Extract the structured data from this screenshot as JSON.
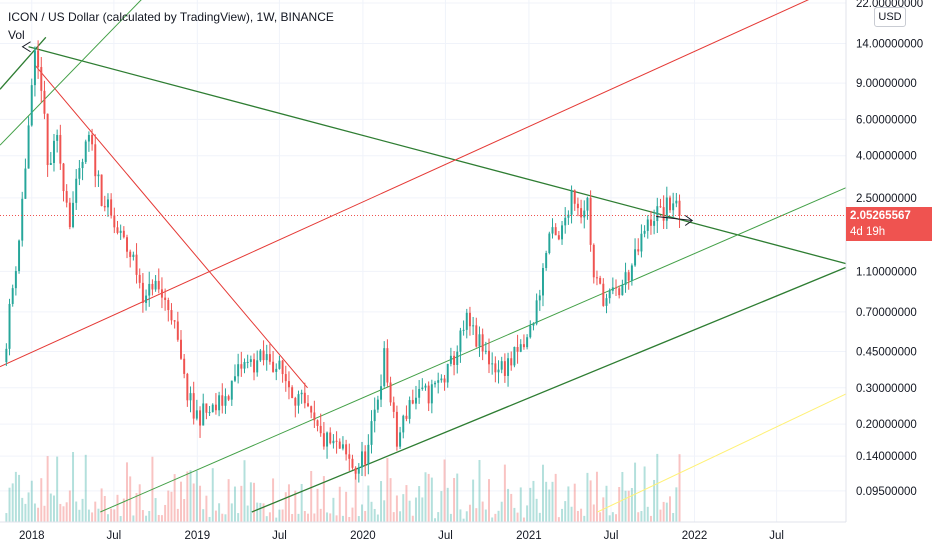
{
  "header": {
    "title": "ICON / US Dollar (calculated by TradingView), 1W, BINANCE",
    "indicator": "Vol"
  },
  "price_axis": {
    "unit": "USD",
    "last_price": "2.05265567",
    "countdown": "4d 19h"
  },
  "colors": {
    "up": "#26a69a",
    "down": "#ef5350",
    "channel_green": "#2e7d32",
    "channel_light_green": "#43a047",
    "channel_red": "#e53935",
    "yellow": "#fff176"
  },
  "chart_data": {
    "type": "candlestick",
    "y_scale": "log",
    "ylim": [
      0.075,
      22
    ],
    "y_ticks": [
      "22.00000000",
      "14.00000000",
      "9.00000000",
      "6.00000000",
      "4.00000000",
      "2.50000000",
      "1.10000000",
      "0.70000000",
      "0.45000000",
      "0.30000000",
      "0.20000000",
      "0.14000000",
      "0.09500000"
    ],
    "y_tick_values": [
      22,
      14,
      9,
      6,
      4,
      2.5,
      1.1,
      0.7,
      0.45,
      0.3,
      0.2,
      0.14,
      0.095
    ],
    "x_ticks": [
      "2018",
      "Jul",
      "2019",
      "Jul",
      "2020",
      "Jul",
      "2021",
      "Jul",
      "2022",
      "Jul"
    ],
    "x_tick_dates": [
      "2018-01-01",
      "2018-07-01",
      "2019-01-01",
      "2019-07-01",
      "2020-01-01",
      "2020-07-01",
      "2021-01-01",
      "2021-07-01",
      "2022-01-01",
      "2022-07-01"
    ],
    "x_range": [
      "2017-10-23",
      "2022-12-01"
    ],
    "last_price": 2.05265567,
    "price_anchors": [
      [
        "2017-10-30",
        0.4
      ],
      [
        "2017-12-04",
        1.6
      ],
      [
        "2017-12-25",
        5.5
      ],
      [
        "2018-01-08",
        11.5
      ],
      [
        "2018-01-22",
        9.0
      ],
      [
        "2018-02-05",
        3.5
      ],
      [
        "2018-02-26",
        4.6
      ],
      [
        "2018-03-26",
        2.0
      ],
      [
        "2018-04-23",
        3.7
      ],
      [
        "2018-05-07",
        4.8
      ],
      [
        "2018-06-04",
        2.6
      ],
      [
        "2018-07-02",
        1.8
      ],
      [
        "2018-08-13",
        1.25
      ],
      [
        "2018-09-10",
        0.78
      ],
      [
        "2018-09-24",
        0.98
      ],
      [
        "2018-11-05",
        0.7
      ],
      [
        "2018-12-03",
        0.32
      ],
      [
        "2018-12-24",
        0.22
      ],
      [
        "2019-02-04",
        0.23
      ],
      [
        "2019-03-04",
        0.27
      ],
      [
        "2019-04-08",
        0.38
      ],
      [
        "2019-05-13",
        0.4
      ],
      [
        "2019-06-10",
        0.42
      ],
      [
        "2019-07-15",
        0.33
      ],
      [
        "2019-08-19",
        0.25
      ],
      [
        "2019-09-30",
        0.17
      ],
      [
        "2019-11-11",
        0.15
      ],
      [
        "2019-12-16",
        0.12
      ],
      [
        "2020-01-13",
        0.15
      ],
      [
        "2020-02-17",
        0.42
      ],
      [
        "2020-03-16",
        0.16
      ],
      [
        "2020-04-13",
        0.26
      ],
      [
        "2020-05-25",
        0.28
      ],
      [
        "2020-07-06",
        0.35
      ],
      [
        "2020-08-17",
        0.62
      ],
      [
        "2020-09-21",
        0.45
      ],
      [
        "2020-10-26",
        0.37
      ],
      [
        "2020-11-23",
        0.4
      ],
      [
        "2020-12-28",
        0.5
      ],
      [
        "2021-01-18",
        0.75
      ],
      [
        "2021-02-15",
        1.65
      ],
      [
        "2021-03-08",
        1.5
      ],
      [
        "2021-04-05",
        2.7
      ],
      [
        "2021-04-26",
        2.2
      ],
      [
        "2021-05-10",
        2.4
      ],
      [
        "2021-05-24",
        1.0
      ],
      [
        "2021-06-21",
        0.8
      ],
      [
        "2021-07-19",
        0.88
      ],
      [
        "2021-08-23",
        1.25
      ],
      [
        "2021-09-13",
        1.7
      ],
      [
        "2021-10-04",
        2.1
      ],
      [
        "2021-10-25",
        2.1
      ],
      [
        "2021-11-15",
        2.45
      ],
      [
        "2021-11-29",
        2.05265567
      ]
    ],
    "trendlines": [
      {
        "color": "green",
        "points": [
          [
            "2017-12-25",
            13.5
          ],
          [
            "2022-12-01",
            1.2
          ]
        ]
      },
      {
        "color": "red",
        "points": [
          [
            "2018-01-08",
            11.0
          ],
          [
            "2019-09-01",
            0.3
          ]
        ]
      },
      {
        "color": "red",
        "points": [
          [
            "2017-10-23",
            0.38
          ],
          [
            "2022-10-01",
            24.0
          ]
        ]
      },
      {
        "color": "light-green",
        "points": [
          [
            "2017-10-23",
            4.5
          ],
          [
            "2018-09-01",
            23.0
          ]
        ]
      },
      {
        "color": "green",
        "points": [
          [
            "2017-10-23",
            8.4
          ],
          [
            "2018-02-01",
            15.0
          ]
        ]
      },
      {
        "color": "light-green",
        "points": [
          [
            "2018-06-01",
            0.075
          ],
          [
            "2022-12-01",
            2.8
          ]
        ]
      },
      {
        "color": "green",
        "points": [
          [
            "2019-05-01",
            0.075
          ],
          [
            "2022-12-01",
            1.15
          ]
        ]
      },
      {
        "color": "yellow",
        "points": [
          [
            "2021-06-01",
            0.075
          ],
          [
            "2022-12-01",
            0.28
          ]
        ]
      }
    ]
  }
}
